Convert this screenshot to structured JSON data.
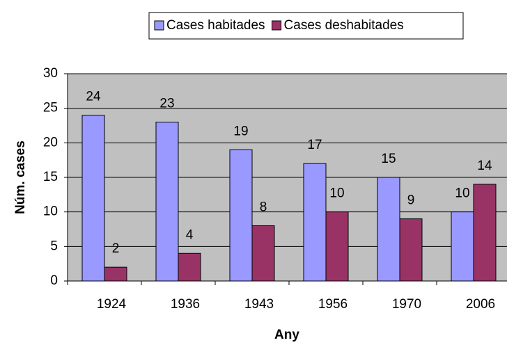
{
  "chart_data": {
    "type": "bar",
    "categories": [
      "1924",
      "1936",
      "1943",
      "1956",
      "1970",
      "2006"
    ],
    "series": [
      {
        "name": "Cases habitades",
        "color": "#9999ff",
        "values": [
          24,
          23,
          19,
          17,
          15,
          10
        ]
      },
      {
        "name": "Cases deshabitades",
        "color": "#993366",
        "values": [
          2,
          4,
          8,
          10,
          9,
          14
        ]
      }
    ],
    "x_label": "Any",
    "y_label": "Núm. cases",
    "ylim": [
      0,
      30
    ],
    "yticks": [
      0,
      5,
      10,
      15,
      20,
      25,
      30
    ],
    "grid": true,
    "legend": "top"
  }
}
